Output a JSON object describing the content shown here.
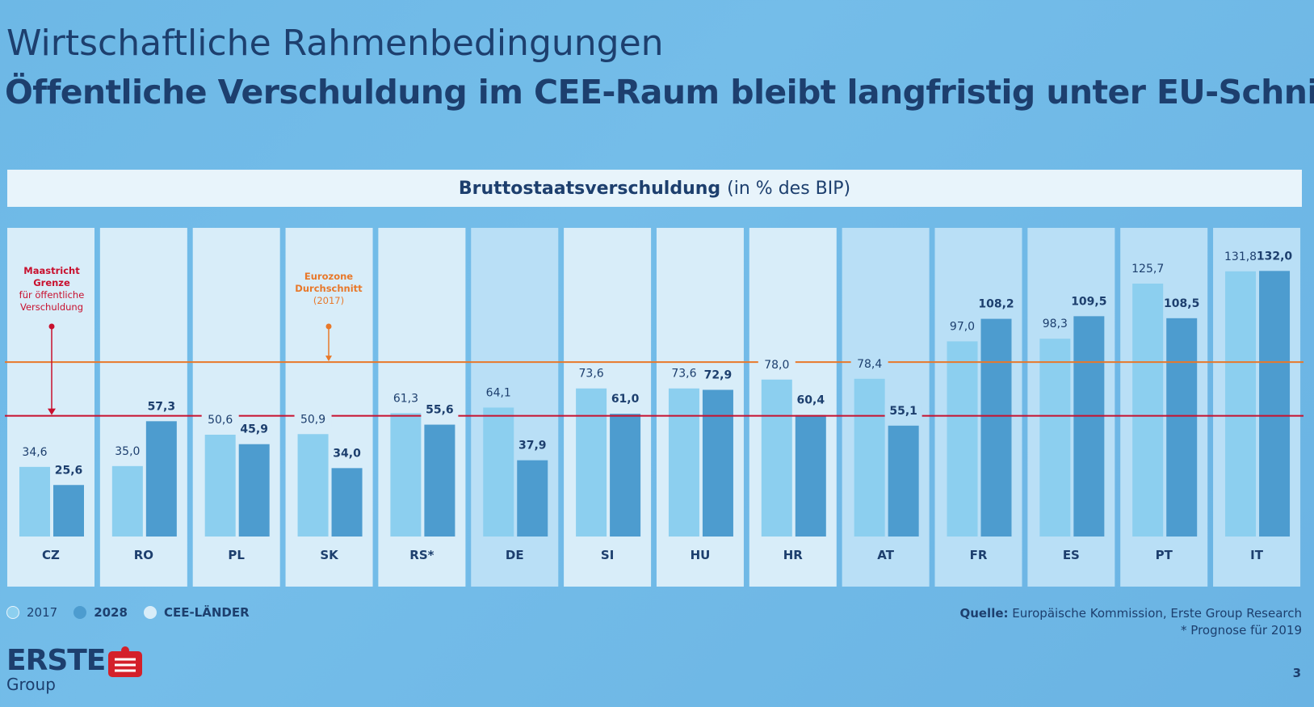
{
  "header": {
    "title": "Wirtschaftliche Rahmenbedingungen",
    "subtitle": "Öffentliche Verschuldung im CEE-Raum bleibt langfristig unter EU-Schnitt"
  },
  "banner": {
    "bold": "Bruttostaatsverschuldung",
    "normal": "(in % des BIP)"
  },
  "annotations": {
    "maastricht": [
      "Maastricht",
      "Grenze",
      "für öffentliche",
      "Verschuldung"
    ],
    "eurozone": [
      "Eurozone",
      "Durchschnitt",
      "(2017)"
    ]
  },
  "legend": {
    "y2017": "2017",
    "y2028": "2028",
    "cee": "CEE-LÄNDER"
  },
  "source": {
    "label": "Quelle:",
    "text": "Europäische Kommission, Erste Group Research",
    "note": "* Prognose für 2019"
  },
  "logo": {
    "name": "ERSTE",
    "sub": "Group"
  },
  "page_number": "3",
  "colors": {
    "bar2017": "#8ccfef",
    "bar2028": "#4d9ccf",
    "cee_bg": "#d8edf9",
    "other_bg": "#b9dff6",
    "maastricht_line": "#c8102e",
    "eurozone_line": "#e8782a",
    "text": "#1d3f6e"
  },
  "chart_data": {
    "type": "bar",
    "categories": [
      "CZ",
      "RO",
      "PL",
      "SK",
      "RS*",
      "DE",
      "SI",
      "HU",
      "HR",
      "AT",
      "FR",
      "ES",
      "PT",
      "IT"
    ],
    "cee": [
      true,
      true,
      true,
      true,
      true,
      false,
      true,
      true,
      true,
      false,
      false,
      false,
      false,
      false
    ],
    "series": [
      {
        "name": "2017",
        "values": [
          34.6,
          35.0,
          50.6,
          50.9,
          61.3,
          64.1,
          73.6,
          73.6,
          78.0,
          78.4,
          97.0,
          98.3,
          125.7,
          131.8
        ]
      },
      {
        "name": "2028",
        "values": [
          25.6,
          57.3,
          45.9,
          34.0,
          55.6,
          37.9,
          61.0,
          72.9,
          60.4,
          55.1,
          108.2,
          109.5,
          108.5,
          132.0
        ]
      }
    ],
    "labels_2017": [
      "34,6",
      "35,0",
      "50,6",
      "50,9",
      "61,3",
      "64,1",
      "73,6",
      "73,6",
      "78,0",
      "78,4",
      "97,0",
      "98,3",
      "125,7",
      "131,8"
    ],
    "labels_2028": [
      "25,6",
      "57,3",
      "45,9",
      "34,0",
      "55,6",
      "37,9",
      "61,0",
      "72,9",
      "60,4",
      "55,1",
      "108,2",
      "109,5",
      "108,5",
      "132,0"
    ],
    "reference_lines": {
      "maastricht": 60,
      "eurozone_2017": 86.7
    },
    "ylim": [
      0,
      140
    ]
  }
}
